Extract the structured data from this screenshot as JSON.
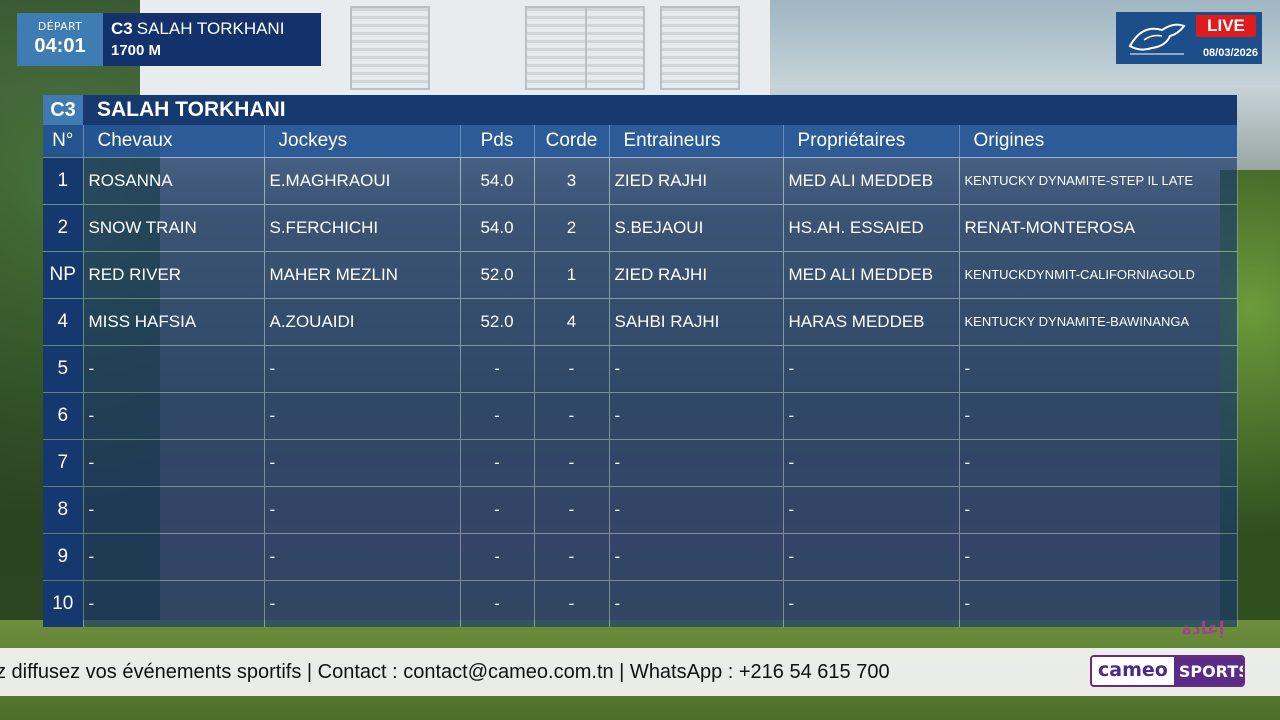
{
  "race": {
    "depart_label": "DÉPART",
    "depart_time": "04:01",
    "code": "C3",
    "name": "SALAH TORKHANI",
    "distance": "1700 M"
  },
  "broadcast": {
    "live_label": "LIVE",
    "date": "08/03/2026",
    "replay_label": "إعادة"
  },
  "table": {
    "title_code": "C3",
    "title_name": "SALAH TORKHANI",
    "headers": {
      "num": "N°",
      "horses": "Chevaux",
      "jockeys": "Jockeys",
      "weight": "Pds",
      "draw": "Corde",
      "trainers": "Entraineurs",
      "owners": "Propriétaires",
      "origins": "Origines"
    },
    "rows": [
      {
        "num": "1",
        "horse": "ROSANNA",
        "jockey": "E.MAGHRAOUI",
        "weight": "54.0",
        "draw": "3",
        "trainer": "ZIED RAJHI",
        "owner": "MED ALI MEDDEB",
        "origin": "KENTUCKY DYNAMITE-STEP IL LATE"
      },
      {
        "num": "2",
        "horse": "SNOW TRAIN",
        "jockey": "S.FERCHICHI",
        "weight": "54.0",
        "draw": "2",
        "trainer": "S.BEJAOUI",
        "owner": "HS.AH. ESSAIED",
        "origin": "RENAT-MONTEROSA"
      },
      {
        "num": "NP",
        "horse": "RED RIVER",
        "jockey": "MAHER MEZLIN",
        "weight": "52.0",
        "draw": "1",
        "trainer": "ZIED RAJHI",
        "owner": "MED ALI MEDDEB",
        "origin": "KENTUCKDYNMIT-CALIFORNIAGOLD"
      },
      {
        "num": "4",
        "horse": "MISS HAFSIA",
        "jockey": "A.ZOUAIDI",
        "weight": "52.0",
        "draw": "4",
        "trainer": "SAHBI RAJHI",
        "owner": "HARAS MEDDEB",
        "origin": "KENTUCKY DYNAMITE-BAWINANGA"
      },
      {
        "num": "5",
        "horse": "-",
        "jockey": "-",
        "weight": "-",
        "draw": "-",
        "trainer": "-",
        "owner": "-",
        "origin": "-"
      },
      {
        "num": "6",
        "horse": "-",
        "jockey": "-",
        "weight": "-",
        "draw": "-",
        "trainer": "-",
        "owner": "-",
        "origin": "-"
      },
      {
        "num": "7",
        "horse": "-",
        "jockey": "-",
        "weight": "-",
        "draw": "-",
        "trainer": "-",
        "owner": "-",
        "origin": "-"
      },
      {
        "num": "8",
        "horse": "-",
        "jockey": "-",
        "weight": "-",
        "draw": "-",
        "trainer": "-",
        "owner": "-",
        "origin": "-"
      },
      {
        "num": "9",
        "horse": "-",
        "jockey": "-",
        "weight": "-",
        "draw": "-",
        "trainer": "-",
        "owner": "-",
        "origin": "-"
      },
      {
        "num": "10",
        "horse": "-",
        "jockey": "-",
        "weight": "-",
        "draw": "-",
        "trainer": "-",
        "owner": "-",
        "origin": "-"
      }
    ]
  },
  "ticker": {
    "text": "z diffusez vos événements sportifs | Contact : contact@cameo.com.tn | WhatsApp : +216 54 615 700"
  },
  "brand": {
    "name": "cameo",
    "suffix": "SPORTS"
  },
  "colors": {
    "panel_header": "#16396f",
    "accent_blue": "#3f7ab0",
    "live_red": "#e01b1b",
    "brand_purple": "#5b2b88"
  }
}
